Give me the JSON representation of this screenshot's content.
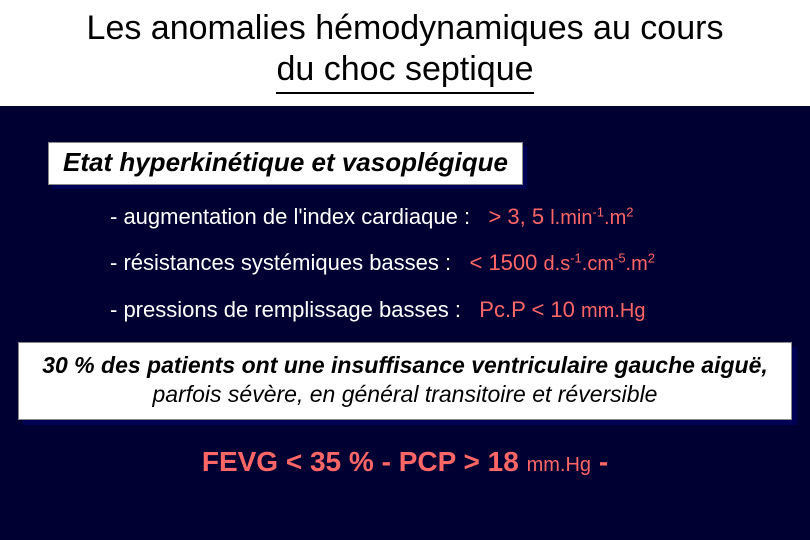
{
  "colors": {
    "background": "#000033",
    "title_bg": "#ffffff",
    "title_text": "#000000",
    "body_text": "#ffffff",
    "accent_red": "#ff6666",
    "box_bg": "#ffffff",
    "box_shadow": "#000055"
  },
  "title": {
    "line1": "Les anomalies hémodynamiques au cours",
    "line2": "du choc septique"
  },
  "subtitle": "Etat hyperkinétique et vasoplégique",
  "bullets": [
    {
      "label": "- augmentation de l'index cardiaque :",
      "value": "> 3, 5",
      "unit_prefix": "l.min",
      "unit_sup1": "-1",
      "unit_mid": ".m",
      "unit_sup2": "2"
    },
    {
      "label": "- résistances systémiques basses :",
      "value": "< 1500",
      "unit_prefix": "d.s",
      "unit_sup1": "-1",
      "unit_mid": ".cm",
      "unit_sup2": "-5",
      "unit_tail": ".m",
      "unit_sup3": "2"
    },
    {
      "label": "- pressions de remplissage basses :",
      "value": "Pc.P < 10",
      "unit_prefix": "mm.Hg"
    }
  ],
  "callout": {
    "bold": "30 % des patients ont une insuffisance ventriculaire gauche aiguë,",
    "rest": " parfois sévère, en général transitoire et réversible"
  },
  "bottom": {
    "part1": "FEVG < 35 %  -  PCP > 18",
    "unit": "mm.Hg",
    "part2": "  -"
  }
}
